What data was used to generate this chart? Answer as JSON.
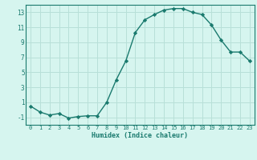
{
  "x": [
    0,
    1,
    2,
    3,
    4,
    5,
    6,
    7,
    8,
    9,
    10,
    11,
    12,
    13,
    14,
    15,
    16,
    17,
    18,
    19,
    20,
    21,
    22,
    23
  ],
  "y": [
    0.5,
    -0.3,
    -0.7,
    -0.5,
    -1.1,
    -0.9,
    -0.8,
    -0.8,
    1.0,
    4.0,
    6.5,
    10.3,
    12.0,
    12.7,
    13.3,
    13.5,
    13.5,
    13.0,
    12.7,
    11.3,
    9.3,
    7.7,
    7.7,
    6.5
  ],
  "xlabel": "Humidex (Indice chaleur)",
  "xlim": [
    -0.5,
    23.5
  ],
  "ylim": [
    -2,
    14
  ],
  "yticks": [
    -1,
    1,
    3,
    5,
    7,
    9,
    11,
    13
  ],
  "xticks": [
    0,
    1,
    2,
    3,
    4,
    5,
    6,
    7,
    8,
    9,
    10,
    11,
    12,
    13,
    14,
    15,
    16,
    17,
    18,
    19,
    20,
    21,
    22,
    23
  ],
  "line_color": "#1a7a6e",
  "marker_color": "#1a7a6e",
  "bg_color": "#d6f5ef",
  "grid_color": "#b8e0d8"
}
